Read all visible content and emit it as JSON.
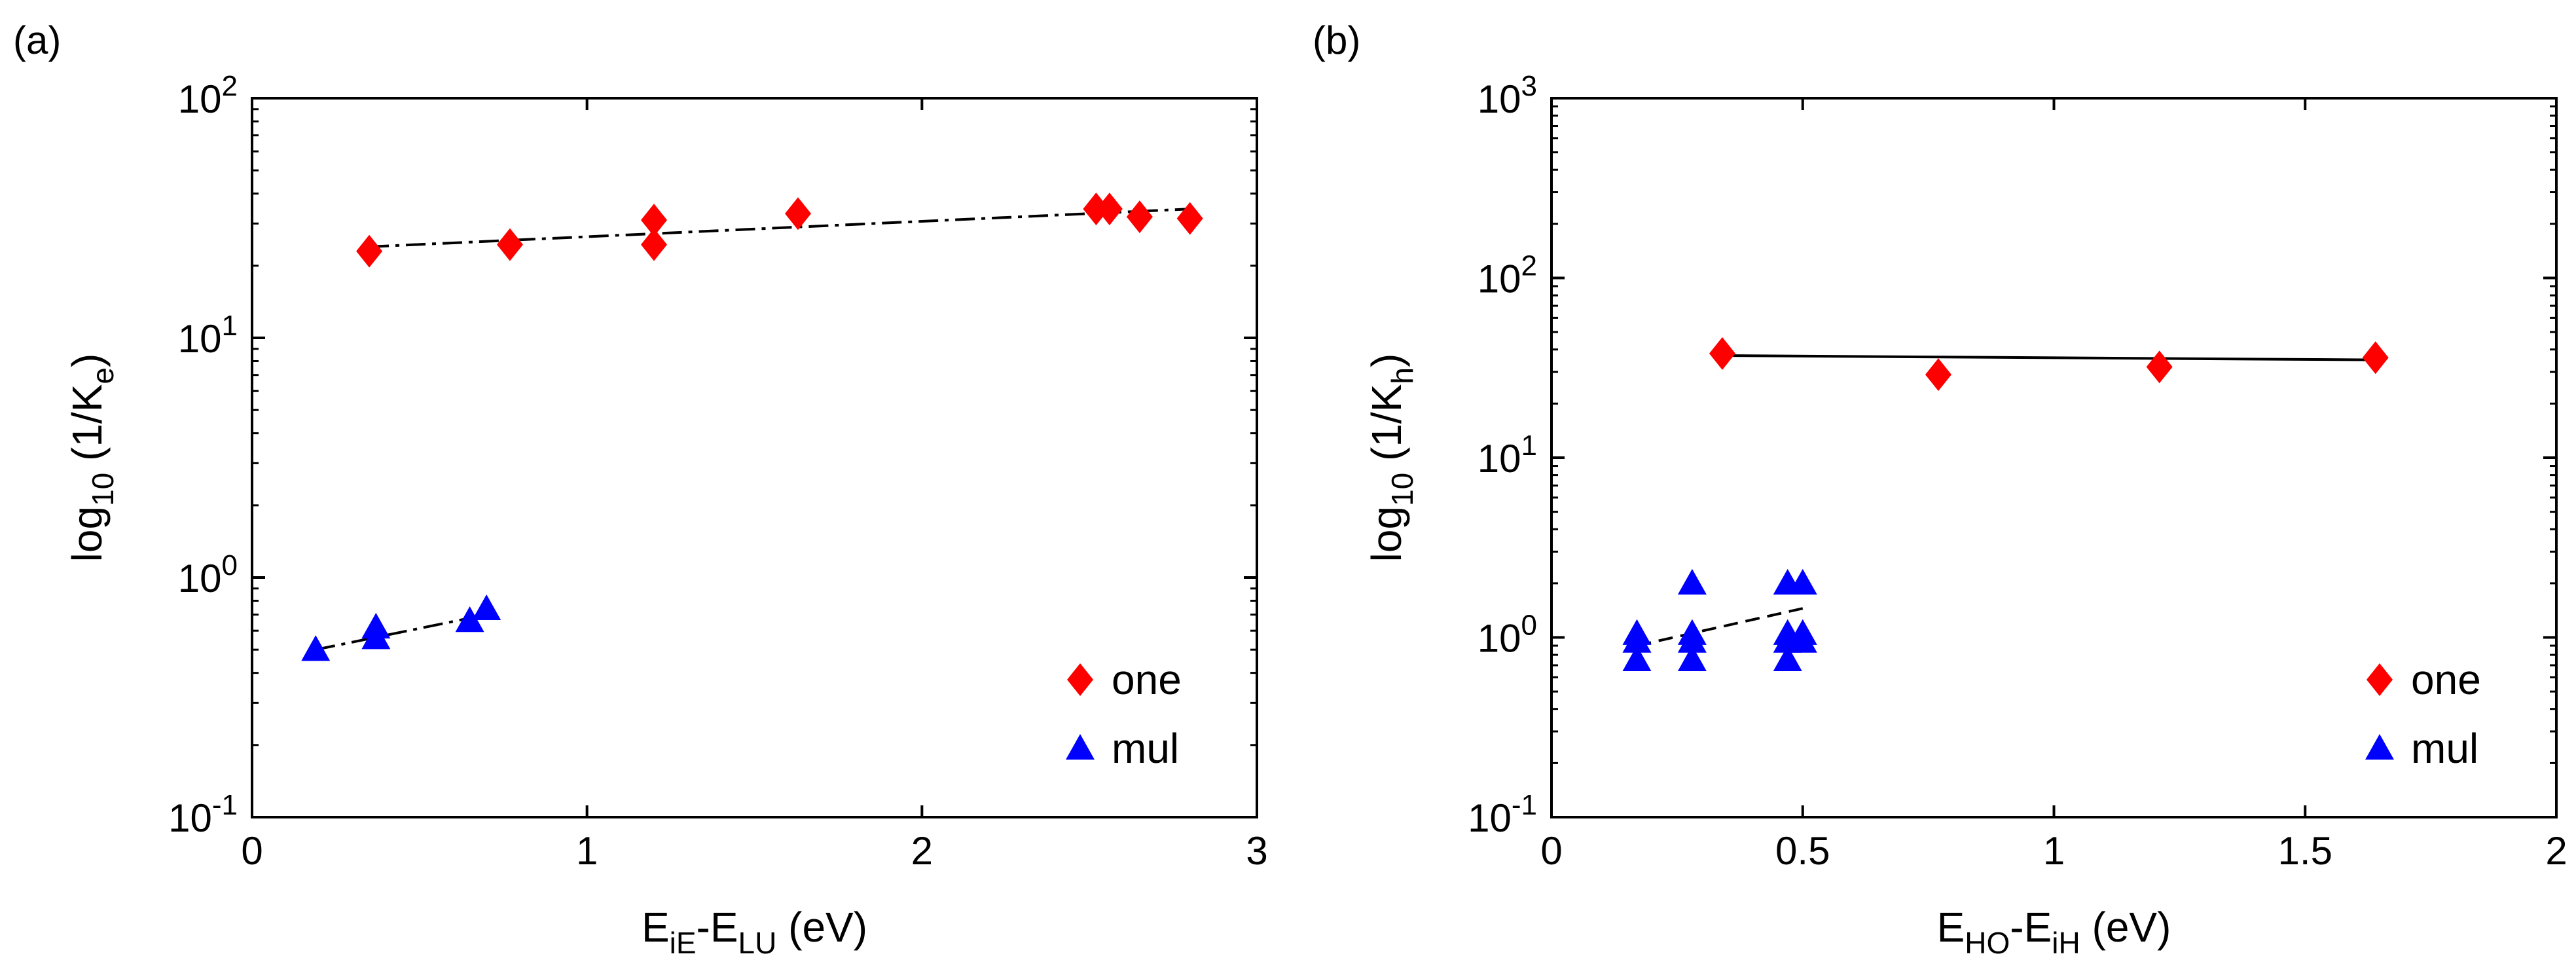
{
  "chart_data": [
    {
      "type": "scatter",
      "panel_label": "(a)",
      "yscale": "log",
      "xlim": [
        0,
        3
      ],
      "ylim": [
        0.1,
        100
      ],
      "xticks": [
        {
          "value": 0,
          "label": "0"
        },
        {
          "value": 1,
          "label": "1"
        },
        {
          "value": 2,
          "label": "2"
        },
        {
          "value": 3,
          "label": "3"
        }
      ],
      "yticks": [
        {
          "value": 0.1,
          "base": "10",
          "exp": "-1"
        },
        {
          "value": 1,
          "base": "10",
          "exp": "0"
        },
        {
          "value": 10,
          "base": "10",
          "exp": "1"
        },
        {
          "value": 100,
          "base": "10",
          "exp": "2"
        }
      ],
      "xlabel": {
        "main1": "E",
        "sub1": "iE",
        "mid": "-E",
        "sub2": "LU",
        "tail": " (eV)"
      },
      "ylabel": {
        "pre": "log",
        "sub": "10",
        "mid": " (1/K",
        "sub2": "e",
        "tail": ")"
      },
      "legend": {
        "position": "bottom-right",
        "entries": [
          {
            "label": "one",
            "marker": "diamond",
            "color": "#ff0000"
          },
          {
            "label": "mul",
            "marker": "triangle",
            "color": "#0000ff"
          }
        ]
      },
      "series": [
        {
          "name": "one",
          "marker": "diamond",
          "color": "#ff0000",
          "points": [
            [
              0.35,
              23
            ],
            [
              0.77,
              24.5
            ],
            [
              1.2,
              24.5
            ],
            [
              1.2,
              31
            ],
            [
              1.63,
              33
            ],
            [
              2.52,
              34.5
            ],
            [
              2.56,
              34.5
            ],
            [
              2.65,
              32
            ],
            [
              2.8,
              31.5
            ]
          ]
        },
        {
          "name": "mul",
          "marker": "triangle",
          "color": "#0000ff",
          "points": [
            [
              0.19,
              0.5
            ],
            [
              0.37,
              0.56
            ],
            [
              0.37,
              0.62
            ],
            [
              0.65,
              0.66
            ],
            [
              0.7,
              0.74
            ]
          ]
        }
      ],
      "fits": [
        {
          "name": "one-fit",
          "style": "dashdot",
          "x": [
            0.35,
            2.8
          ],
          "y": [
            24,
            34.5
          ]
        },
        {
          "name": "mul-fit",
          "style": "dashdot",
          "x": [
            0.19,
            0.7
          ],
          "y": [
            0.5,
            0.7
          ]
        }
      ]
    },
    {
      "type": "scatter",
      "panel_label": "(b)",
      "yscale": "log",
      "xlim": [
        0,
        2
      ],
      "ylim": [
        0.1,
        1000
      ],
      "xticks": [
        {
          "value": 0,
          "label": "0"
        },
        {
          "value": 0.5,
          "label": "0.5"
        },
        {
          "value": 1,
          "label": "1"
        },
        {
          "value": 1.5,
          "label": "1.5"
        },
        {
          "value": 2,
          "label": "2"
        }
      ],
      "yticks": [
        {
          "value": 0.1,
          "base": "10",
          "exp": "-1"
        },
        {
          "value": 1,
          "base": "10",
          "exp": "0"
        },
        {
          "value": 10,
          "base": "10",
          "exp": "1"
        },
        {
          "value": 100,
          "base": "10",
          "exp": "2"
        },
        {
          "value": 1000,
          "base": "10",
          "exp": "3"
        }
      ],
      "xlabel": {
        "main1": "E",
        "sub1": "HO",
        "mid": "-E",
        "sub2": "iH",
        "tail": " (eV)"
      },
      "ylabel": {
        "pre": "log",
        "sub": "10",
        "mid": " (1/K",
        "sub2": "h",
        "tail": ")"
      },
      "legend": {
        "position": "bottom-right",
        "entries": [
          {
            "label": "one",
            "marker": "diamond",
            "color": "#ff0000"
          },
          {
            "label": "mul",
            "marker": "triangle",
            "color": "#0000ff"
          }
        ]
      },
      "series": [
        {
          "name": "one",
          "marker": "diamond",
          "color": "#ff0000",
          "points": [
            [
              0.34,
              38
            ],
            [
              0.77,
              29
            ],
            [
              1.21,
              32
            ],
            [
              1.64,
              36
            ]
          ]
        },
        {
          "name": "mul",
          "marker": "triangle",
          "color": "#0000ff",
          "points": [
            [
              0.17,
              0.75
            ],
            [
              0.17,
              0.95
            ],
            [
              0.17,
              1.05
            ],
            [
              0.28,
              0.75
            ],
            [
              0.28,
              0.95
            ],
            [
              0.28,
              1.05
            ],
            [
              0.28,
              2.0
            ],
            [
              0.47,
              0.75
            ],
            [
              0.47,
              0.95
            ],
            [
              0.47,
              1.05
            ],
            [
              0.47,
              2.0
            ],
            [
              0.5,
              0.95
            ],
            [
              0.5,
              1.05
            ],
            [
              0.5,
              2.0
            ]
          ]
        }
      ],
      "fits": [
        {
          "name": "one-fit",
          "style": "solid",
          "x": [
            0.34,
            1.64
          ],
          "y": [
            37,
            35
          ]
        },
        {
          "name": "mul-fit",
          "style": "dashed",
          "x": [
            0.17,
            0.5
          ],
          "y": [
            0.9,
            1.45
          ]
        }
      ]
    }
  ]
}
